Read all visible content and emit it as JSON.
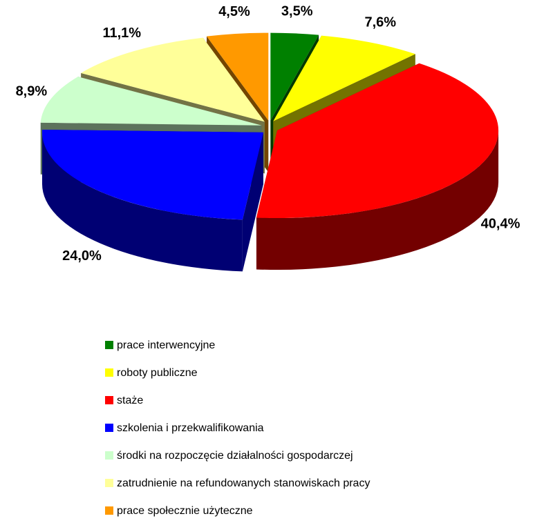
{
  "chart_data": {
    "type": "pie",
    "categories": [
      "prace interwencyjne",
      "roboty publiczne",
      "staże",
      "szkolenia i przekwalifikowania",
      "środki na rozpoczęcie działalności gospodarczej",
      "zatrudnienie na refundowanych stanowiskach pracy",
      "prace społecznie użyteczne"
    ],
    "values": [
      3.5,
      7.6,
      40.4,
      24.0,
      8.9,
      11.1,
      4.5
    ],
    "value_labels": [
      "3,5%",
      "7,6%",
      "40,4%",
      "24,0%",
      "8,9%",
      "11,1%",
      "4,5%"
    ],
    "colors": [
      "#008000",
      "#ffff00",
      "#ff0000",
      "#0000ff",
      "#ccffcc",
      "#ffff99",
      "#ff9900"
    ]
  }
}
